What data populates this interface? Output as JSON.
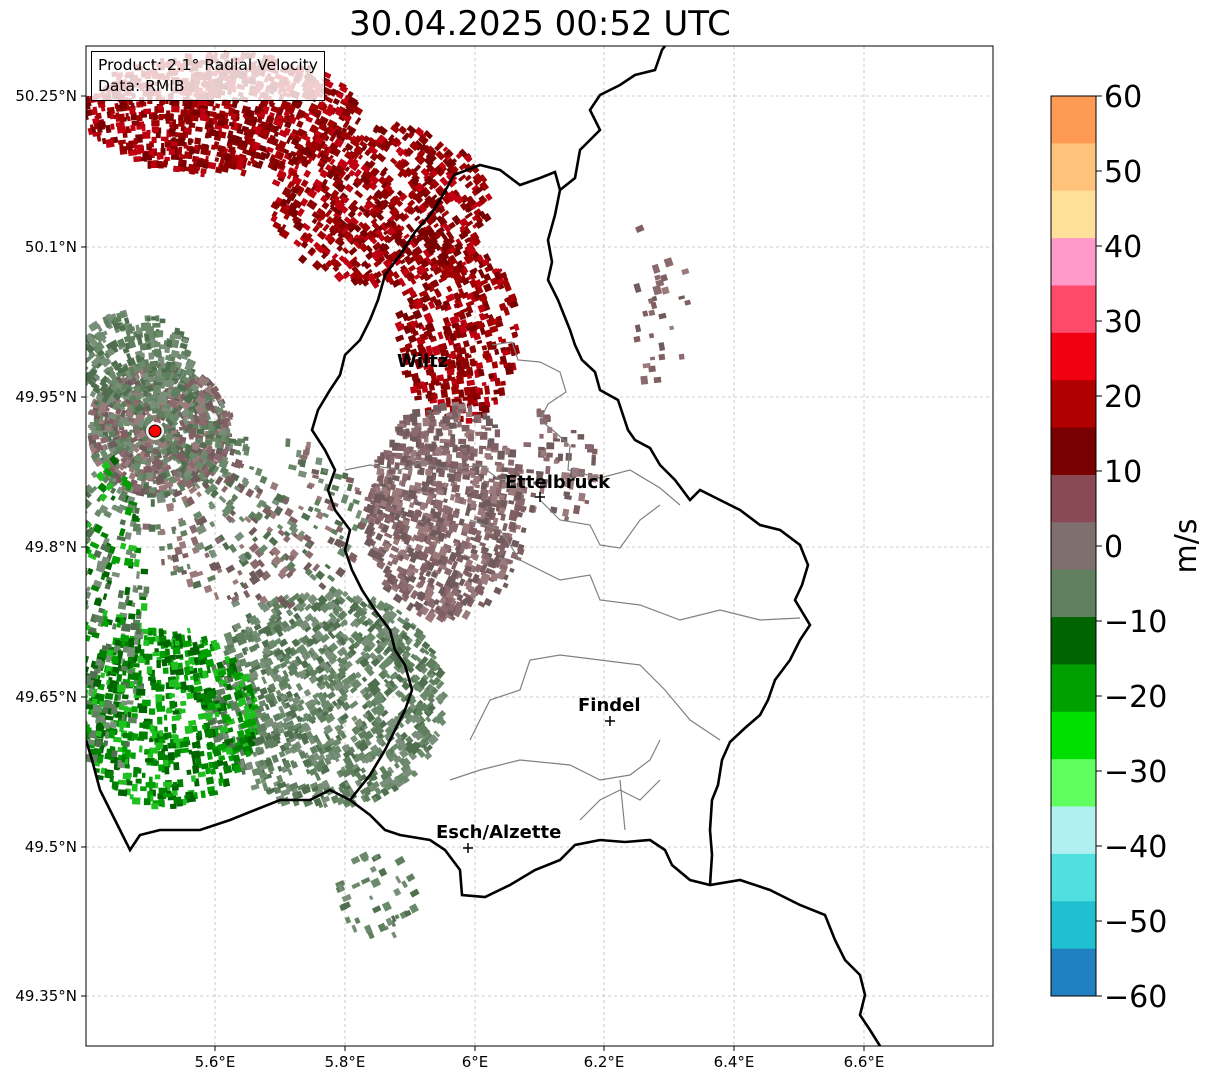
{
  "title": "30.04.2025 00:52 UTC",
  "info": {
    "product": "Product: 2.1° Radial Velocity",
    "data": "Data: RMIB"
  },
  "axes": {
    "lat_ticks": [
      "50.25°N",
      "50.1°N",
      "49.95°N",
      "49.8°N",
      "49.65°N",
      "49.5°N",
      "49.35°N"
    ],
    "lon_ticks": [
      "5.6°E",
      "5.8°E",
      "6°E",
      "6.2°E",
      "6.4°E",
      "6.6°E"
    ]
  },
  "cities": [
    {
      "name": "Wiltz"
    },
    {
      "name": "Ettelbruck"
    },
    {
      "name": "Findel"
    },
    {
      "name": "Esch/Alzette"
    }
  ],
  "colorbar": {
    "label": "m/s",
    "ticks": [
      "60",
      "50",
      "40",
      "30",
      "20",
      "10",
      "0",
      "−10",
      "−20",
      "−30",
      "−40",
      "−50",
      "−60"
    ],
    "colors": [
      "#ff9a55",
      "#ffc27a",
      "#ffe09a",
      "#ff9ac8",
      "#ff4b6a",
      "#f00010",
      "#b00000",
      "#780000",
      "#8a4a55",
      "#7f706f",
      "#5f7f5f",
      "#006400",
      "#00a000",
      "#00e000",
      "#60ff60",
      "#b0f0f0",
      "#50e0e0",
      "#20c0d0",
      "#2080c0"
    ]
  },
  "legend_colors": {
    "outbound": "#8b0000",
    "near_zero_pos": "#7f5f62",
    "near_zero_neg": "#5f7f5f",
    "inbound": "#008000",
    "radar_site": "#ff0000"
  }
}
